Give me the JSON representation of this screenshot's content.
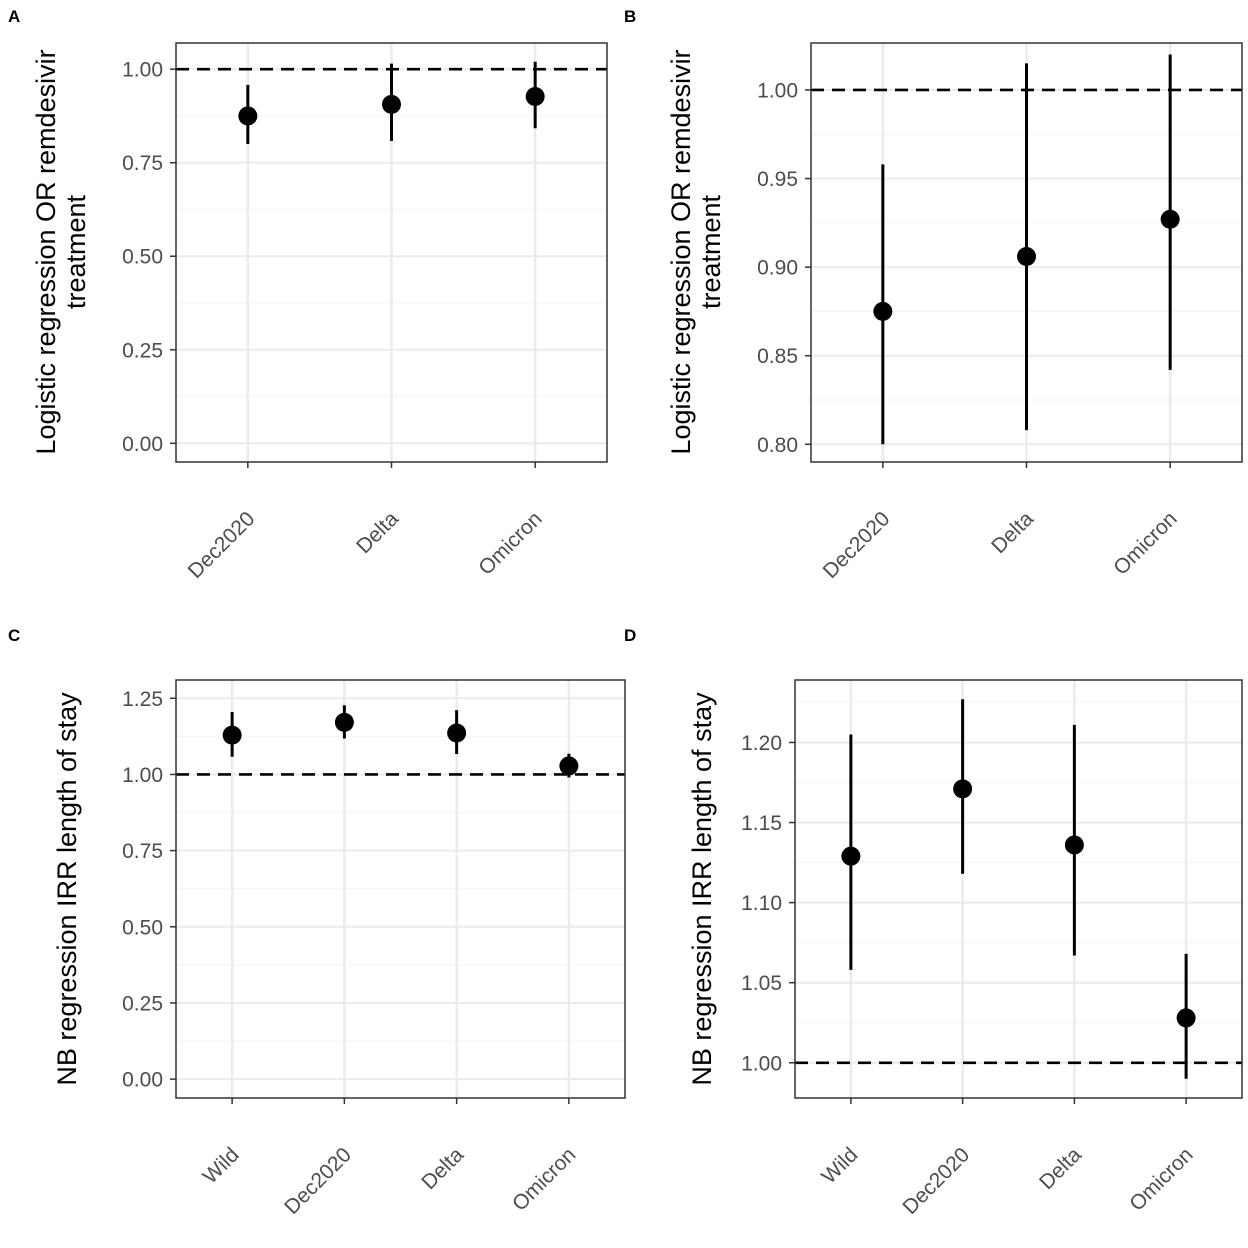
{
  "panels": [
    {
      "letter": "A",
      "ylabel_lines": [
        "Logistic regression OR remdesivir",
        "treatment"
      ],
      "chart_data": {
        "type": "scatter",
        "subtype": "point-range",
        "categories": [
          "Dec2020",
          "Delta",
          "Omicron"
        ],
        "values": [
          0.875,
          0.906,
          0.927
        ],
        "lower": [
          0.8,
          0.808,
          0.842
        ],
        "upper": [
          0.958,
          1.015,
          1.02
        ],
        "reference_line": 1.0,
        "ylim": [
          -0.05,
          1.07
        ],
        "yticks": [
          0.0,
          0.25,
          0.5,
          0.75,
          1.0
        ],
        "ytick_labels": [
          "0.00",
          "0.25",
          "0.50",
          "0.75",
          "1.00"
        ]
      }
    },
    {
      "letter": "B",
      "ylabel_lines": [
        "Logistic regression OR remdesivir",
        "treatment"
      ],
      "chart_data": {
        "type": "scatter",
        "subtype": "point-range",
        "categories": [
          "Dec2020",
          "Delta",
          "Omicron"
        ],
        "values": [
          0.875,
          0.906,
          0.927
        ],
        "lower": [
          0.8,
          0.808,
          0.842
        ],
        "upper": [
          0.958,
          1.015,
          1.02
        ],
        "reference_line": 1.0,
        "ylim": [
          0.79,
          1.0265
        ],
        "yticks": [
          0.8,
          0.85,
          0.9,
          0.95,
          1.0
        ],
        "ytick_labels": [
          "0.80",
          "0.85",
          "0.90",
          "0.95",
          "1.00"
        ]
      }
    },
    {
      "letter": "C",
      "ylabel_lines": [
        "NB regression IRR length of stay"
      ],
      "chart_data": {
        "type": "scatter",
        "subtype": "point-range",
        "categories": [
          "Wild",
          "Dec2020",
          "Delta",
          "Omicron"
        ],
        "values": [
          1.129,
          1.171,
          1.136,
          1.028
        ],
        "lower": [
          1.058,
          1.118,
          1.067,
          0.99
        ],
        "upper": [
          1.205,
          1.227,
          1.211,
          1.068
        ],
        "reference_line": 1.0,
        "ylim": [
          -0.062,
          1.31
        ],
        "yticks": [
          0.0,
          0.25,
          0.5,
          0.75,
          1.0,
          1.25
        ],
        "ytick_labels": [
          "0.00",
          "0.25",
          "0.50",
          "0.75",
          "1.00",
          "1.25"
        ]
      }
    },
    {
      "letter": "D",
      "ylabel_lines": [
        "NB regression IRR length of stay"
      ],
      "chart_data": {
        "type": "scatter",
        "subtype": "point-range",
        "categories": [
          "Wild",
          "Dec2020",
          "Delta",
          "Omicron"
        ],
        "values": [
          1.129,
          1.171,
          1.136,
          1.028
        ],
        "lower": [
          1.058,
          1.118,
          1.067,
          0.99
        ],
        "upper": [
          1.205,
          1.227,
          1.211,
          1.068
        ],
        "reference_line": 1.0,
        "ylim": [
          0.978,
          1.239
        ],
        "yticks": [
          1.0,
          1.05,
          1.1,
          1.15,
          1.2
        ],
        "ytick_labels": [
          "1.00",
          "1.05",
          "1.10",
          "1.15",
          "1.20"
        ]
      }
    }
  ],
  "style": {
    "point_color": "#000000",
    "grid_major": "#ebebeb",
    "grid_minor": "#f5f5f5",
    "panel_border": "#333333",
    "tick_color": "#333333"
  }
}
